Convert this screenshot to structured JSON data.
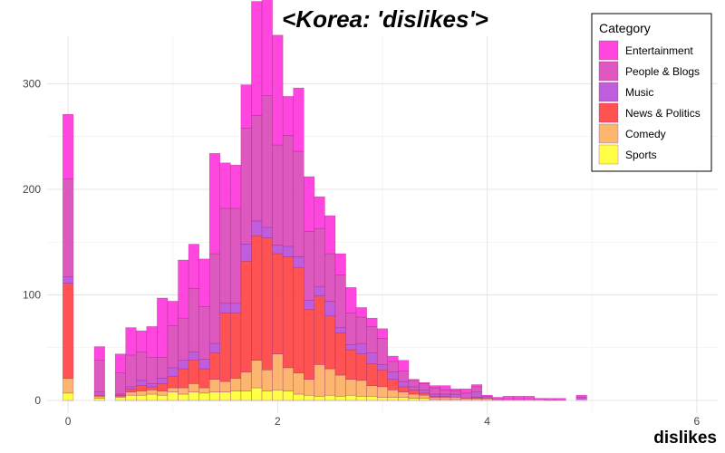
{
  "chart_data": {
    "type": "bar",
    "stacked": true,
    "title": "<Korea: 'dislikes'>",
    "xlabel": "dislikes",
    "ylabel": "",
    "xlim": [
      -0.2,
      6.2
    ],
    "ylim": [
      -12,
      345
    ],
    "x_ticks": [
      0,
      2,
      4,
      6
    ],
    "y_ticks": [
      0,
      100,
      200,
      300
    ],
    "grid": true,
    "legend_title": "Category",
    "legend_position": "top-right",
    "bin_width": 0.1,
    "bin_x": [
      0,
      0.1,
      0.2,
      0.3,
      0.4,
      0.5,
      0.6,
      0.7,
      0.8,
      0.9,
      1.0,
      1.1,
      1.2,
      1.3,
      1.4,
      1.5,
      1.6,
      1.7,
      1.8,
      1.9,
      2.0,
      2.1,
      2.2,
      2.3,
      2.4,
      2.5,
      2.6,
      2.7,
      2.8,
      2.9,
      3.0,
      3.1,
      3.2,
      3.3,
      3.4,
      3.5,
      3.6,
      3.7,
      3.8,
      3.9,
      4.0,
      4.1,
      4.2,
      4.3,
      4.4,
      4.5,
      4.6,
      4.7,
      4.8,
      4.9
    ],
    "series": [
      {
        "name": "Sports",
        "color": "#FFFF33",
        "values": [
          7,
          0,
          0,
          2,
          0,
          3,
          5,
          5,
          6,
          5,
          8,
          6,
          8,
          7,
          8,
          8,
          9,
          9,
          12,
          9,
          10,
          9,
          6,
          5,
          4,
          5,
          4,
          5,
          4,
          4,
          3,
          3,
          3,
          2,
          2,
          1,
          1,
          1,
          1,
          1,
          1,
          0,
          0,
          0,
          0,
          0,
          0,
          0,
          0,
          1
        ]
      },
      {
        "name": "Comedy",
        "color": "#FDAE61",
        "values": [
          14,
          0,
          0,
          2,
          0,
          1,
          3,
          4,
          4,
          4,
          4,
          6,
          8,
          5,
          12,
          10,
          12,
          18,
          26,
          20,
          34,
          22,
          20,
          15,
          30,
          25,
          20,
          15,
          15,
          10,
          10,
          7,
          5,
          4,
          3,
          2,
          2,
          2,
          1,
          1,
          1,
          1,
          1,
          1,
          1,
          1,
          0,
          0,
          0,
          0
        ]
      },
      {
        "name": "News & Politics",
        "color": "#FF4040",
        "values": [
          90,
          0,
          0,
          1,
          0,
          1,
          3,
          5,
          3,
          7,
          11,
          18,
          22,
          18,
          25,
          65,
          62,
          105,
          118,
          125,
          95,
          105,
          100,
          66,
          65,
          50,
          40,
          28,
          25,
          21,
          16,
          10,
          5,
          4,
          2,
          1,
          1,
          0,
          0,
          1,
          0,
          0,
          0,
          0,
          0,
          0,
          0,
          0,
          0,
          0
        ]
      },
      {
        "name": "Music",
        "color": "#B94BD9",
        "values": [
          6,
          0,
          0,
          3,
          0,
          1,
          2,
          5,
          3,
          5,
          8,
          8,
          8,
          9,
          9,
          9,
          9,
          16,
          14,
          10,
          8,
          10,
          10,
          9,
          9,
          14,
          5,
          5,
          10,
          10,
          5,
          7,
          5,
          3,
          3,
          2,
          2,
          3,
          0,
          5,
          2,
          0,
          0,
          0,
          0,
          0,
          0,
          0,
          0,
          2
        ]
      },
      {
        "name": "People & Blogs",
        "color": "#D946B8",
        "values": [
          93,
          0,
          0,
          30,
          0,
          20,
          30,
          27,
          25,
          20,
          40,
          40,
          60,
          50,
          85,
          90,
          90,
          110,
          100,
          125,
          95,
          105,
          100,
          65,
          55,
          45,
          50,
          30,
          25,
          25,
          25,
          10,
          10,
          6,
          6,
          6,
          4,
          3,
          5,
          5,
          0,
          0,
          0,
          0,
          0,
          0,
          0,
          0,
          0,
          0
        ]
      },
      {
        "name": "Entertainment",
        "color": "#FF33DD",
        "values": [
          61,
          0,
          0,
          13,
          0,
          18,
          26,
          20,
          29,
          56,
          23,
          55,
          42,
          45,
          95,
          43,
          41,
          41,
          108,
          104,
          104,
          37,
          60,
          52,
          30,
          36,
          20,
          24,
          9,
          8,
          9,
          5,
          10,
          1,
          1,
          2,
          4,
          2,
          4,
          2,
          1,
          2,
          3,
          3,
          3,
          1,
          2,
          2,
          0,
          2
        ]
      }
    ]
  }
}
